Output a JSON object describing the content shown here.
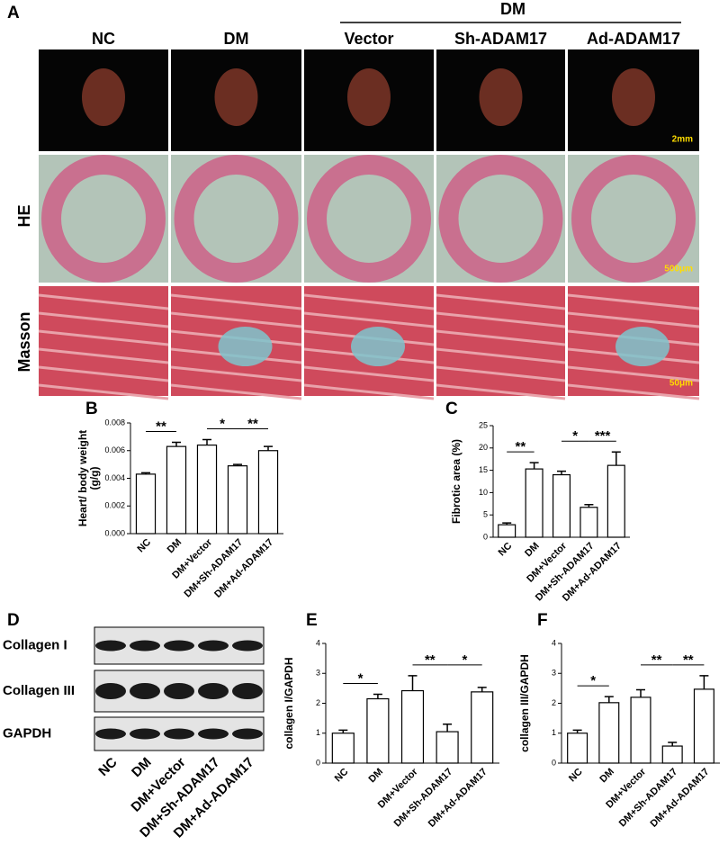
{
  "panel_labels": [
    "A",
    "B",
    "C",
    "D",
    "E",
    "F"
  ],
  "panel_a": {
    "group_header": "DM",
    "columns": [
      "NC",
      "DM",
      "Vector",
      "Sh-ADAM17",
      "Ad-ADAM17"
    ],
    "rows": [
      "HE",
      "Masson"
    ],
    "scale_bars": [
      "2mm",
      "500μm",
      "50μm"
    ]
  },
  "panel_d": {
    "bands": [
      "Collagen I",
      "Collagen III",
      "GAPDH"
    ],
    "lanes": [
      "NC",
      "DM",
      "DM+Vector",
      "DM+Sh-ADAM17",
      "DM+Ad-ADAM17"
    ]
  },
  "chart_data": [
    {
      "type": "bar",
      "ylabel": [
        "Heart/ body weight",
        "(g/g)"
      ],
      "categories": [
        "NC",
        "DM",
        "DM+Vector",
        "DM+Sh-ADAM17",
        "DM+Ad-ADAM17"
      ],
      "values": [
        0.0043,
        0.0063,
        0.0064,
        0.0049,
        0.006
      ],
      "errors": [
        0.0001,
        0.0003,
        0.0004,
        0.0001,
        0.0003
      ],
      "color": "#ffffff",
      "ylim": [
        0,
        0.008
      ],
      "yticks": [
        {
          "value": 0,
          "label": "0.000"
        },
        {
          "value": 0.002,
          "label": "0.002"
        },
        {
          "value": 0.004,
          "label": "0.004"
        },
        {
          "value": 0.006,
          "label": "0.006"
        },
        {
          "value": 0.008,
          "label": "0.008"
        }
      ],
      "annotations": [
        "**",
        "*",
        "**"
      ]
    },
    {
      "type": "bar",
      "ylabel": [
        "Fibrotic area (%)"
      ],
      "categories": [
        "NC",
        "DM",
        "DM+Vector",
        "DM+Sh-ADAM17",
        "DM+Ad-ADAM17"
      ],
      "values": [
        2.8,
        15.3,
        14,
        6.7,
        16.1
      ],
      "errors": [
        0.4,
        1.4,
        0.8,
        0.6,
        3
      ],
      "color": "#ffffff",
      "ylim": [
        0,
        25
      ],
      "yticks": [
        0,
        5,
        10,
        15,
        20,
        25
      ],
      "annotations": [
        "**",
        "*",
        "***"
      ]
    },
    {
      "type": "bar",
      "ylabel": [
        "collagen I/GAPDH"
      ],
      "categories": [
        "NC",
        "DM",
        "DM+Vector",
        "DM+Sh-ADAM17",
        "DM+Ad-ADAM17"
      ],
      "values": [
        1.0,
        2.15,
        2.42,
        1.05,
        2.38
      ],
      "errors": [
        0.1,
        0.15,
        0.5,
        0.25,
        0.15
      ],
      "color": "#ffffff",
      "ylim": [
        0,
        4
      ],
      "yticks": [
        0,
        1,
        2,
        3,
        4
      ],
      "annotations": [
        "*",
        "**",
        "*"
      ]
    },
    {
      "type": "bar",
      "ylabel": [
        "collagen III/GAPDH"
      ],
      "categories": [
        "NC",
        "DM",
        "DM+Vector",
        "DM+Sh-ADAM17",
        "DM+Ad-ADAM17"
      ],
      "values": [
        1.0,
        2.02,
        2.2,
        0.57,
        2.47
      ],
      "errors": [
        0.1,
        0.2,
        0.25,
        0.12,
        0.45
      ],
      "color": "#ffffff",
      "ylim": [
        0,
        4
      ],
      "yticks": [
        0,
        1,
        2,
        3,
        4
      ],
      "annotations": [
        "*",
        "**",
        "**"
      ]
    }
  ]
}
